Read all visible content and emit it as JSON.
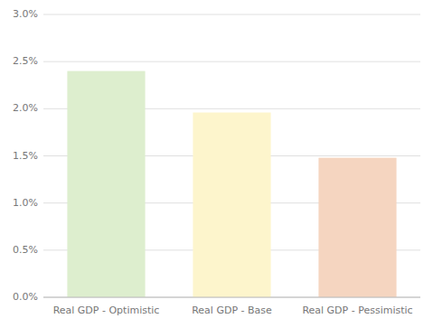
{
  "chart_data": {
    "type": "bar",
    "categories": [
      "Real GDP - Optimistic",
      "Real GDP - Base",
      "Real GDP - Pessimistic"
    ],
    "values": [
      0.024,
      0.0196,
      0.0148
    ],
    "colors": [
      "#ddeece",
      "#fdf5cc",
      "#f5d5c0"
    ],
    "ylim": [
      0.0,
      0.03
    ],
    "yticks": [
      {
        "value": 0.0,
        "label": "0.0%"
      },
      {
        "value": 0.005,
        "label": "0.5%"
      },
      {
        "value": 0.01,
        "label": "1.0%"
      },
      {
        "value": 0.015,
        "label": "1.5%"
      },
      {
        "value": 0.02,
        "label": "2.0%"
      },
      {
        "value": 0.025,
        "label": "2.5%"
      },
      {
        "value": 0.03,
        "label": "3.0%"
      }
    ],
    "grid": true
  }
}
